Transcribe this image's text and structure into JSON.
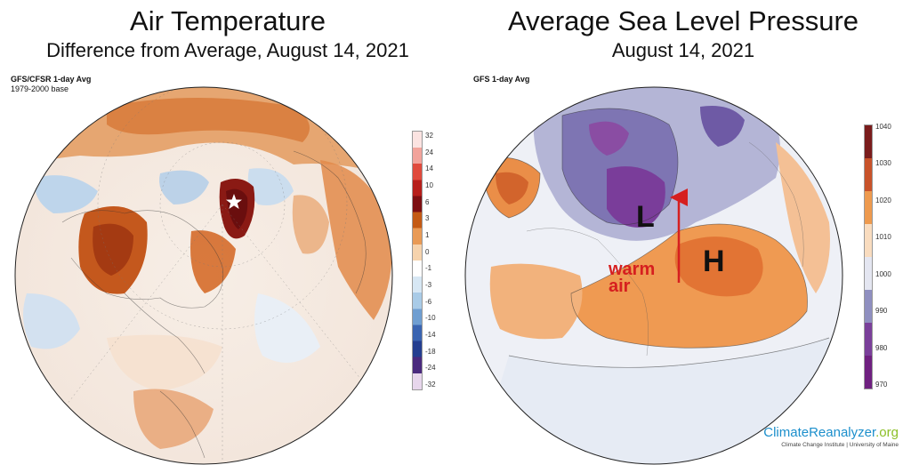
{
  "left_map": {
    "title": "Air Temperature",
    "subtitle": "Difference from Average, August 14, 2021",
    "source_line1": "GFS/CFSR 1-day Avg",
    "source_line2": "1979-2000 base",
    "colorbar": {
      "ticks": [
        "32",
        "24",
        "14",
        "10",
        "6",
        "3",
        "1",
        "0",
        "-1",
        "-3",
        "-6",
        "-10",
        "-14",
        "-18",
        "-24",
        "-32"
      ],
      "colors": [
        "#fbe3e1",
        "#f2a39b",
        "#e04a3c",
        "#b71f1b",
        "#7d0f12",
        "#c45a14",
        "#e99a55",
        "#f6d3ad",
        "#ffffff",
        "#d7e7f4",
        "#a9cbe7",
        "#6f9ed1",
        "#3a64b1",
        "#243e90",
        "#4a2a7e",
        "#e7d6ec"
      ]
    },
    "marker": "star-icon"
  },
  "right_map": {
    "title": "Average Sea Level Pressure",
    "subtitle": "August 14, 2021",
    "source_line1": "GFS 1-day Avg",
    "colorbar": {
      "ticks": [
        "1040",
        "1030",
        "1020",
        "1010",
        "1000",
        "990",
        "980",
        "970"
      ],
      "colors": [
        "#7a1c1c",
        "#c8522a",
        "#ee9a4e",
        "#f9dcbf",
        "#e4e6f1",
        "#8f8fc0",
        "#7a3f9a",
        "#6f2080"
      ]
    },
    "annotations": {
      "low_label": "L",
      "high_label": "H",
      "warm_line1": "warm",
      "warm_line2": "air"
    }
  },
  "branding": {
    "name_main": "ClimateReanalyzer",
    "name_tld": ".org",
    "institution": "Climate Change Institute | University of Maine"
  }
}
